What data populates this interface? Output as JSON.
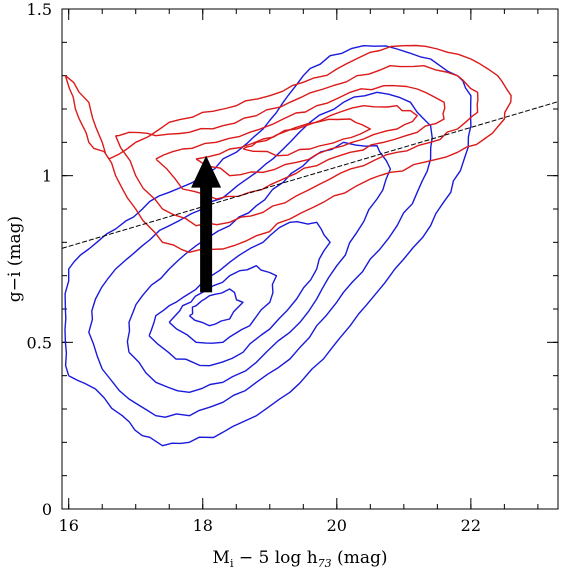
{
  "chart_data": {
    "type": "contour",
    "xlim": [
      15.9,
      23.3
    ],
    "ylim": [
      0,
      1.5
    ],
    "xticks": [
      {
        "value": 16,
        "label": "16"
      },
      {
        "value": 18,
        "label": "18"
      },
      {
        "value": 20,
        "label": "20"
      },
      {
        "value": 22,
        "label": "22"
      }
    ],
    "yticks": [
      {
        "value": 0,
        "label": "0"
      },
      {
        "value": 0.5,
        "label": "0.5"
      },
      {
        "value": 1,
        "label": "1"
      },
      {
        "value": 1.5,
        "label": "1.5"
      }
    ],
    "x_minor_step": 0.5,
    "y_minor_step": 0.1,
    "xlabel": {
      "main": "M",
      "sub1": "i",
      "mid": " − 5 log h",
      "sub2": "73",
      "tail": " (mag)"
    },
    "ylabel": "g−i (mag)",
    "dividing_line": {
      "x": [
        15.9,
        23.3
      ],
      "y": [
        0.782,
        1.222
      ],
      "color": "#000000",
      "style": "dashed"
    },
    "arrow": {
      "x": 18.05,
      "from_y": 0.65,
      "to_y": 1.06,
      "color": "#000000"
    },
    "contours": [
      {
        "name": "blue-contour-1",
        "color": "#1a1adc",
        "points": [
          [
            16.0,
            0.4
          ],
          [
            16.4,
            0.36
          ],
          [
            16.8,
            0.28
          ],
          [
            17.1,
            0.22
          ],
          [
            17.4,
            0.19
          ],
          [
            17.8,
            0.2
          ],
          [
            18.3,
            0.23
          ],
          [
            18.8,
            0.28
          ],
          [
            19.3,
            0.35
          ],
          [
            19.8,
            0.45
          ],
          [
            20.2,
            0.55
          ],
          [
            20.6,
            0.65
          ],
          [
            21.0,
            0.75
          ],
          [
            21.4,
            0.85
          ],
          [
            21.7,
            0.95
          ],
          [
            21.9,
            1.05
          ],
          [
            22.0,
            1.15
          ],
          [
            22.0,
            1.24
          ],
          [
            21.8,
            1.3
          ],
          [
            21.4,
            1.35
          ],
          [
            20.9,
            1.38
          ],
          [
            20.4,
            1.39
          ],
          [
            19.9,
            1.36
          ],
          [
            19.5,
            1.3
          ],
          [
            19.2,
            1.22
          ],
          [
            18.9,
            1.14
          ],
          [
            18.5,
            1.07
          ],
          [
            18.0,
            1.0
          ],
          [
            17.5,
            0.95
          ],
          [
            17.1,
            0.9
          ],
          [
            16.7,
            0.84
          ],
          [
            16.3,
            0.78
          ],
          [
            16.0,
            0.72
          ],
          [
            15.95,
            0.6
          ],
          [
            15.95,
            0.5
          ],
          [
            16.0,
            0.4
          ]
        ]
      },
      {
        "name": "blue-contour-2",
        "color": "#1a1adc",
        "points": [
          [
            16.5,
            0.42
          ],
          [
            16.9,
            0.33
          ],
          [
            17.3,
            0.28
          ],
          [
            17.8,
            0.28
          ],
          [
            18.3,
            0.32
          ],
          [
            18.8,
            0.38
          ],
          [
            19.3,
            0.45
          ],
          [
            19.7,
            0.55
          ],
          [
            20.1,
            0.65
          ],
          [
            20.5,
            0.75
          ],
          [
            20.9,
            0.85
          ],
          [
            21.2,
            0.95
          ],
          [
            21.4,
            1.05
          ],
          [
            21.4,
            1.15
          ],
          [
            21.1,
            1.22
          ],
          [
            20.6,
            1.25
          ],
          [
            20.1,
            1.22
          ],
          [
            19.6,
            1.16
          ],
          [
            19.2,
            1.08
          ],
          [
            18.8,
            1.01
          ],
          [
            18.4,
            0.95
          ],
          [
            18.0,
            0.9
          ],
          [
            17.5,
            0.85
          ],
          [
            17.1,
            0.79
          ],
          [
            16.7,
            0.72
          ],
          [
            16.4,
            0.63
          ],
          [
            16.3,
            0.53
          ],
          [
            16.5,
            0.42
          ]
        ]
      },
      {
        "name": "blue-contour-3",
        "color": "#1a1adc",
        "points": [
          [
            16.9,
            0.47
          ],
          [
            17.3,
            0.38
          ],
          [
            17.8,
            0.35
          ],
          [
            18.3,
            0.38
          ],
          [
            18.8,
            0.44
          ],
          [
            19.3,
            0.53
          ],
          [
            19.7,
            0.63
          ],
          [
            20.0,
            0.73
          ],
          [
            20.3,
            0.83
          ],
          [
            20.6,
            0.93
          ],
          [
            20.8,
            1.02
          ],
          [
            20.6,
            1.09
          ],
          [
            20.1,
            1.1
          ],
          [
            19.6,
            1.05
          ],
          [
            19.2,
            0.98
          ],
          [
            18.8,
            0.91
          ],
          [
            18.4,
            0.85
          ],
          [
            17.9,
            0.79
          ],
          [
            17.5,
            0.72
          ],
          [
            17.1,
            0.64
          ],
          [
            16.9,
            0.56
          ],
          [
            16.9,
            0.47
          ]
        ]
      },
      {
        "name": "blue-contour-4",
        "color": "#1a1adc",
        "points": [
          [
            17.2,
            0.52
          ],
          [
            17.6,
            0.45
          ],
          [
            18.1,
            0.43
          ],
          [
            18.6,
            0.47
          ],
          [
            19.0,
            0.54
          ],
          [
            19.4,
            0.63
          ],
          [
            19.7,
            0.72
          ],
          [
            19.9,
            0.8
          ],
          [
            19.7,
            0.86
          ],
          [
            19.3,
            0.86
          ],
          [
            18.9,
            0.8
          ],
          [
            18.4,
            0.74
          ],
          [
            18.0,
            0.68
          ],
          [
            17.6,
            0.62
          ],
          [
            17.3,
            0.58
          ],
          [
            17.2,
            0.52
          ]
        ]
      },
      {
        "name": "blue-contour-5",
        "color": "#1a1adc",
        "points": [
          [
            17.5,
            0.56
          ],
          [
            17.9,
            0.5
          ],
          [
            18.3,
            0.5
          ],
          [
            18.7,
            0.55
          ],
          [
            19.0,
            0.62
          ],
          [
            19.1,
            0.7
          ],
          [
            18.8,
            0.73
          ],
          [
            18.4,
            0.7
          ],
          [
            18.0,
            0.65
          ],
          [
            17.7,
            0.61
          ],
          [
            17.5,
            0.56
          ]
        ]
      },
      {
        "name": "blue-contour-6",
        "color": "#1a1adc",
        "points": [
          [
            17.8,
            0.58
          ],
          [
            18.1,
            0.55
          ],
          [
            18.4,
            0.57
          ],
          [
            18.6,
            0.62
          ],
          [
            18.4,
            0.66
          ],
          [
            18.1,
            0.64
          ],
          [
            17.9,
            0.61
          ],
          [
            17.8,
            0.58
          ]
        ]
      },
      {
        "name": "red-contour-1",
        "color": "#dc1a1a",
        "points": [
          [
            15.95,
            1.3
          ],
          [
            16.3,
            1.22
          ],
          [
            16.5,
            1.1
          ],
          [
            16.7,
            1.0
          ],
          [
            17.0,
            0.9
          ],
          [
            17.4,
            0.8
          ],
          [
            17.8,
            0.77
          ],
          [
            18.3,
            0.78
          ],
          [
            18.8,
            0.82
          ],
          [
            19.3,
            0.87
          ],
          [
            19.8,
            0.92
          ],
          [
            20.3,
            0.97
          ],
          [
            20.8,
            1.01
          ],
          [
            21.3,
            1.04
          ],
          [
            21.8,
            1.07
          ],
          [
            22.2,
            1.11
          ],
          [
            22.5,
            1.17
          ],
          [
            22.6,
            1.24
          ],
          [
            22.4,
            1.3
          ],
          [
            22.0,
            1.35
          ],
          [
            21.5,
            1.38
          ],
          [
            21.0,
            1.39
          ],
          [
            20.5,
            1.37
          ],
          [
            20.0,
            1.32
          ],
          [
            19.5,
            1.28
          ],
          [
            19.0,
            1.24
          ],
          [
            18.5,
            1.21
          ],
          [
            18.0,
            1.19
          ],
          [
            17.5,
            1.16
          ],
          [
            17.0,
            1.1
          ],
          [
            16.6,
            1.05
          ],
          [
            16.3,
            1.1
          ],
          [
            16.1,
            1.2
          ],
          [
            15.95,
            1.3
          ]
        ]
      },
      {
        "name": "red-contour-2",
        "color": "#dc1a1a",
        "points": [
          [
            16.7,
            1.12
          ],
          [
            17.0,
            1.0
          ],
          [
            17.4,
            0.9
          ],
          [
            17.9,
            0.85
          ],
          [
            18.4,
            0.86
          ],
          [
            18.9,
            0.89
          ],
          [
            19.4,
            0.94
          ],
          [
            19.9,
            0.99
          ],
          [
            20.4,
            1.03
          ],
          [
            20.9,
            1.07
          ],
          [
            21.4,
            1.1
          ],
          [
            21.8,
            1.14
          ],
          [
            22.1,
            1.19
          ],
          [
            22.1,
            1.25
          ],
          [
            21.8,
            1.3
          ],
          [
            21.3,
            1.33
          ],
          [
            20.8,
            1.33
          ],
          [
            20.3,
            1.3
          ],
          [
            19.8,
            1.26
          ],
          [
            19.3,
            1.22
          ],
          [
            18.8,
            1.18
          ],
          [
            18.3,
            1.15
          ],
          [
            17.8,
            1.13
          ],
          [
            17.3,
            1.12
          ],
          [
            16.9,
            1.13
          ],
          [
            16.7,
            1.12
          ]
        ]
      },
      {
        "name": "red-contour-3",
        "color": "#dc1a1a",
        "points": [
          [
            17.3,
            1.05
          ],
          [
            17.7,
            0.96
          ],
          [
            18.2,
            0.93
          ],
          [
            18.7,
            0.95
          ],
          [
            19.2,
            0.99
          ],
          [
            19.7,
            1.03
          ],
          [
            20.2,
            1.07
          ],
          [
            20.7,
            1.1
          ],
          [
            21.2,
            1.13
          ],
          [
            21.6,
            1.17
          ],
          [
            21.6,
            1.22
          ],
          [
            21.2,
            1.26
          ],
          [
            20.7,
            1.27
          ],
          [
            20.2,
            1.25
          ],
          [
            19.7,
            1.21
          ],
          [
            19.2,
            1.17
          ],
          [
            18.7,
            1.13
          ],
          [
            18.2,
            1.1
          ],
          [
            17.7,
            1.08
          ],
          [
            17.3,
            1.05
          ]
        ]
      },
      {
        "name": "red-contour-4",
        "color": "#dc1a1a",
        "points": [
          [
            17.9,
            1.05
          ],
          [
            18.4,
            1.0
          ],
          [
            18.9,
            1.01
          ],
          [
            19.4,
            1.04
          ],
          [
            19.9,
            1.08
          ],
          [
            20.4,
            1.11
          ],
          [
            20.9,
            1.14
          ],
          [
            21.2,
            1.18
          ],
          [
            20.9,
            1.21
          ],
          [
            20.4,
            1.21
          ],
          [
            19.9,
            1.18
          ],
          [
            19.4,
            1.14
          ],
          [
            18.9,
            1.11
          ],
          [
            18.4,
            1.08
          ],
          [
            17.9,
            1.05
          ]
        ]
      },
      {
        "name": "red-contour-5",
        "color": "#dc1a1a",
        "points": [
          [
            18.6,
            1.08
          ],
          [
            19.1,
            1.06
          ],
          [
            19.6,
            1.08
          ],
          [
            20.1,
            1.11
          ],
          [
            20.5,
            1.14
          ],
          [
            20.2,
            1.17
          ],
          [
            19.7,
            1.16
          ],
          [
            19.2,
            1.13
          ],
          [
            18.8,
            1.1
          ],
          [
            18.6,
            1.08
          ]
        ]
      }
    ]
  }
}
